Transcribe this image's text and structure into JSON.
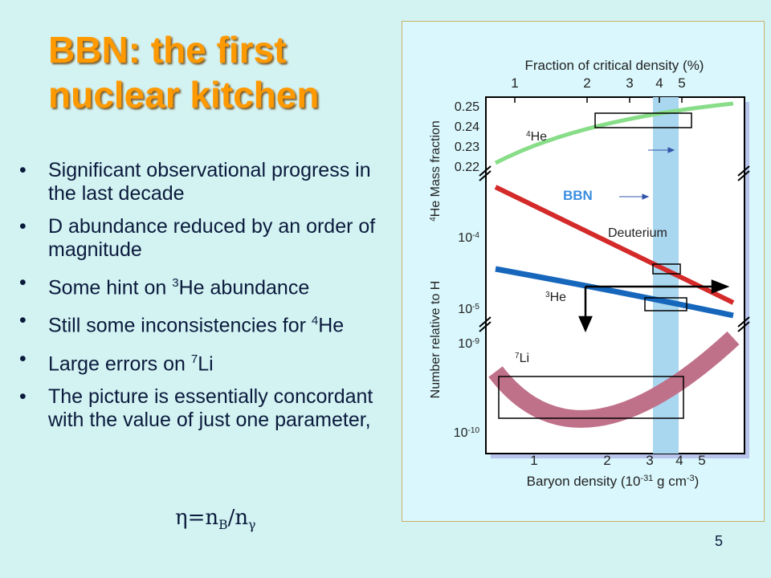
{
  "slide": {
    "title_line1": "BBN: the first",
    "title_line2": "nuclear kitchen",
    "bullets": [
      {
        "text": "Significant observational progress in the last decade"
      },
      {
        "text": "D abundance reduced by an order of magnitude"
      },
      {
        "pre": "Some hint on ",
        "sup": "3",
        "post": "He abundance"
      },
      {
        "pre": "Still some inconsistencies for ",
        "sup": "4",
        "post": "He"
      },
      {
        "pre": "Large errors on  ",
        "sup": "7",
        "post": "Li"
      },
      {
        "text": "The picture is essentially concordant with the value of just one parameter,"
      }
    ],
    "formula": {
      "eta": "η",
      "eq": "=n",
      "sub_b": "B",
      "slash": "/n",
      "sub_gamma": "γ"
    },
    "page_number": "5"
  },
  "chart_data": {
    "type": "line",
    "top_axis_label": "Fraction of critical density (%)",
    "top_ticks": [
      "1",
      "2",
      "3",
      "4",
      "5"
    ],
    "xlabel_main": "Baryon density (10",
    "xlabel_exp": "-31",
    "xlabel_rest": " g cm",
    "xlabel_exp2": "-3",
    "xlabel_close": ")",
    "bottom_ticks": [
      "1",
      "2",
      "3",
      "4",
      "5"
    ],
    "x_scale": "log",
    "ylabel_top": "Mass fraction",
    "ylabel_top_prefix": "4",
    "ylabel_top_element": "He",
    "ylabel_bottom": "Number relative to H",
    "y_ticks_top": [
      "0.25",
      "0.24",
      "0.23",
      "0.22"
    ],
    "y_ticks_mid_base": "10",
    "y_ticks_mid": [
      "-4",
      "-5"
    ],
    "y_ticks_low_base": "10",
    "y_ticks_low": [
      "-9",
      "-10"
    ],
    "band_label": "BBN",
    "band_range": [
      3.1,
      4.0
    ],
    "series": [
      {
        "name_sup": "4",
        "name": "He",
        "color": "#88dd88"
      },
      {
        "name": "Deuterium",
        "color": "#d42a2a"
      },
      {
        "name_sup": "3",
        "name": "He",
        "color": "#1666bb"
      },
      {
        "name_sup": "7",
        "name": "Li",
        "color": "#c0718a"
      }
    ],
    "colors": {
      "band": "#a9d7f0",
      "frame": "#000000",
      "shadow": "#b8c4ec"
    }
  }
}
